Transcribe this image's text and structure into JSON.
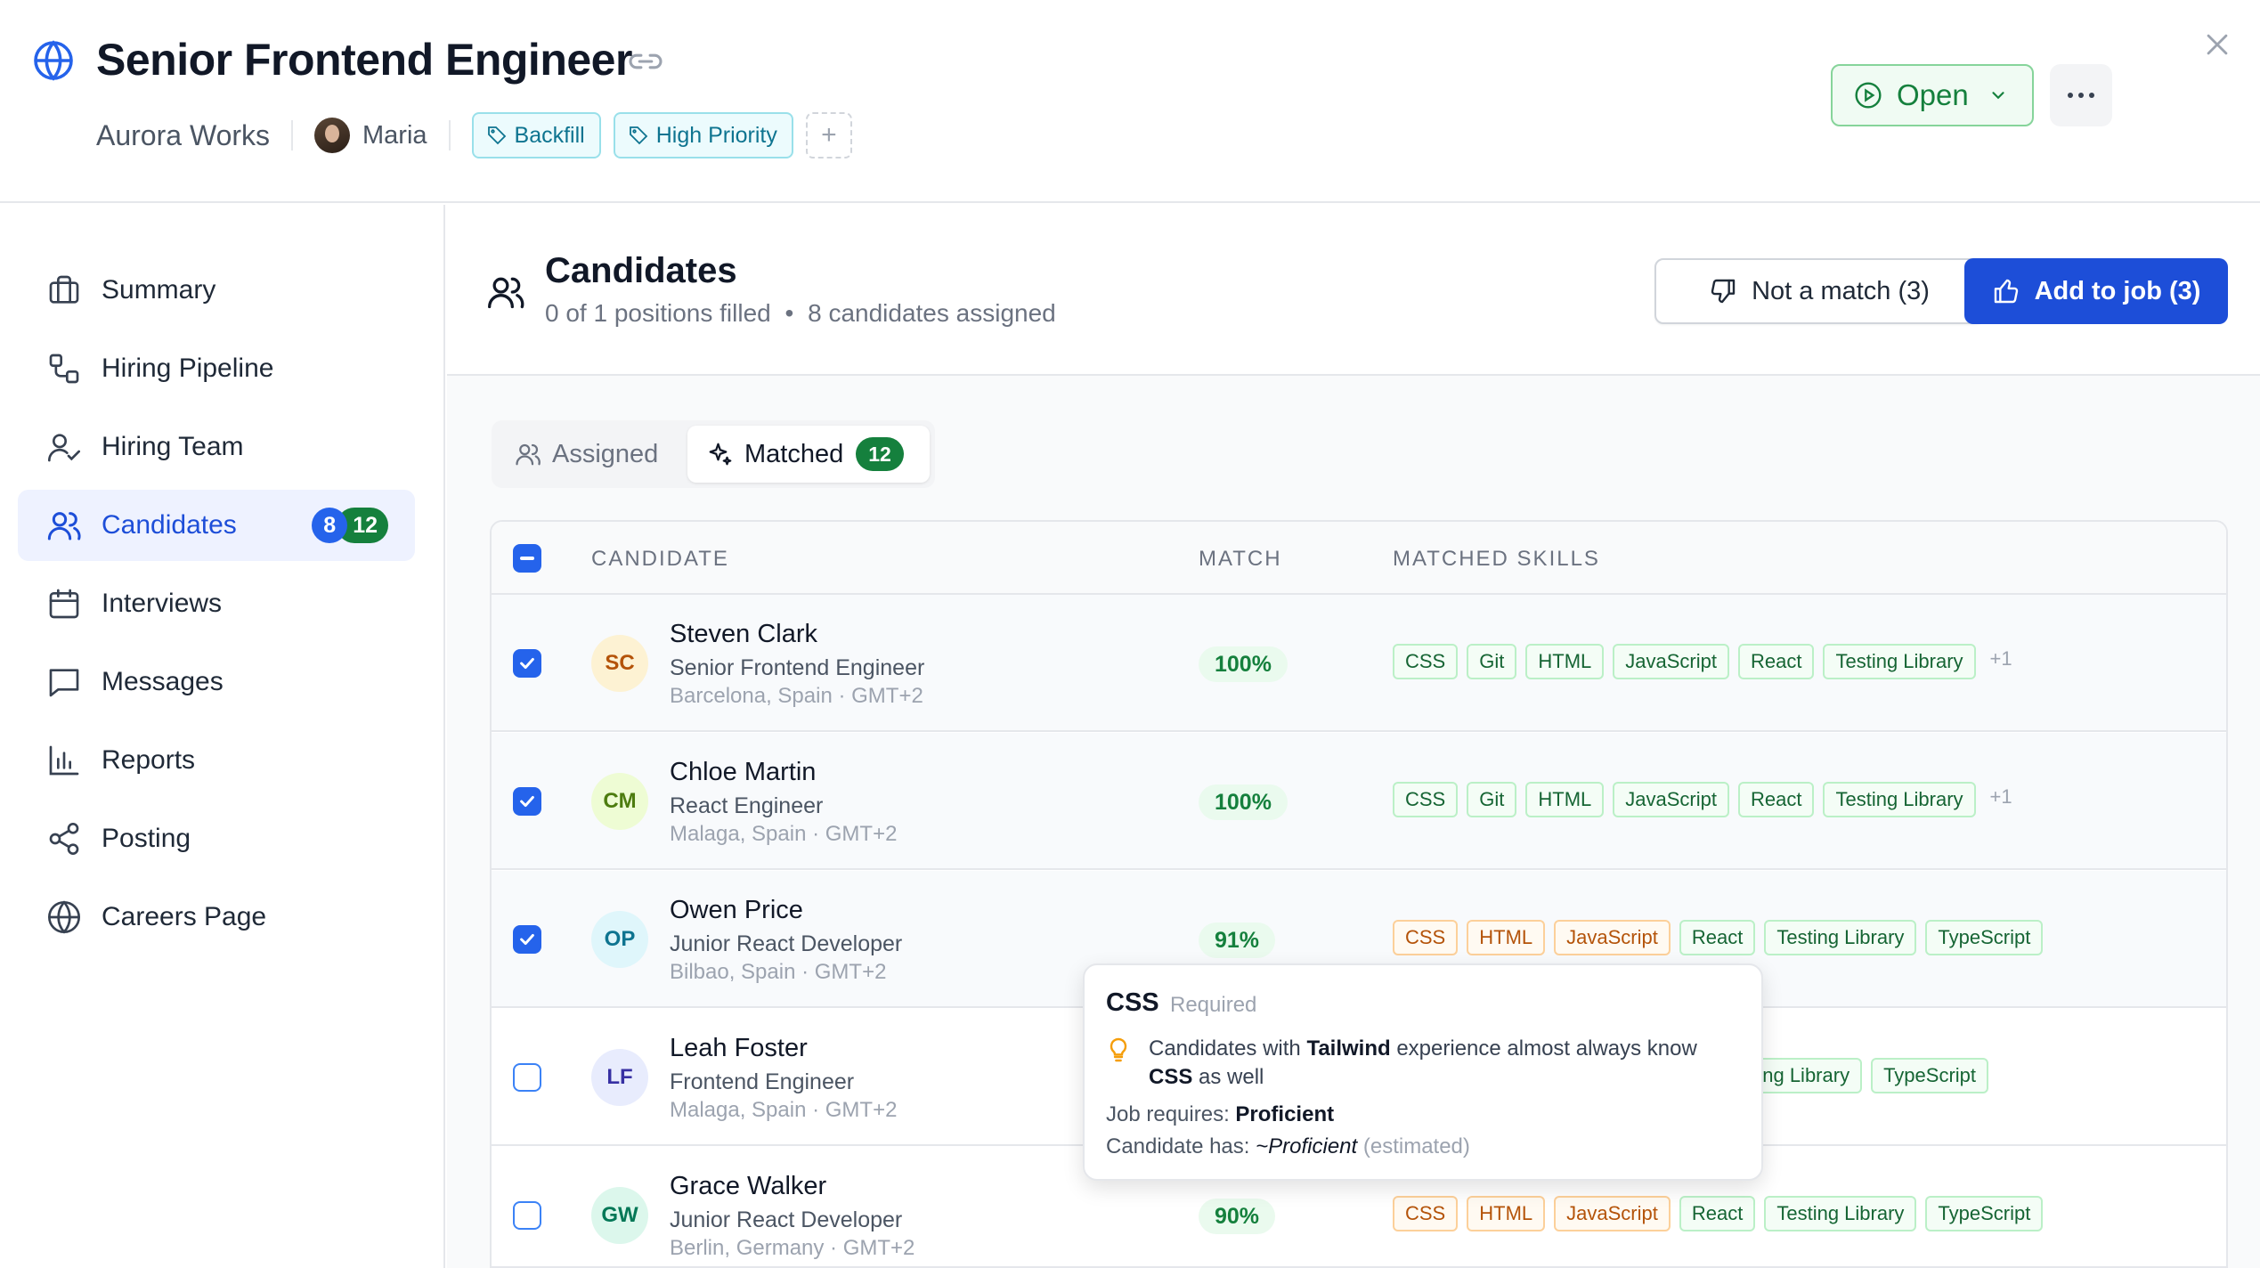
{
  "header": {
    "title": "Senior Frontend Engineer",
    "company": "Aurora Works",
    "owner": "Maria",
    "tags": [
      "Backfill",
      "High Priority"
    ],
    "tag_add": "+",
    "status_label": "Open",
    "more_label": "•••"
  },
  "sidebar": {
    "items": [
      {
        "label": "Summary",
        "icon": "briefcase-icon"
      },
      {
        "label": "Hiring Pipeline",
        "icon": "pipeline-icon"
      },
      {
        "label": "Hiring Team",
        "icon": "user-check-icon"
      },
      {
        "label": "Candidates",
        "icon": "users-icon",
        "active": true,
        "badge_assigned": "8",
        "badge_matched": "12"
      },
      {
        "label": "Interviews",
        "icon": "calendar-icon"
      },
      {
        "label": "Messages",
        "icon": "message-icon"
      },
      {
        "label": "Reports",
        "icon": "bar-chart-icon"
      },
      {
        "label": "Posting",
        "icon": "share-icon"
      },
      {
        "label": "Careers Page",
        "icon": "globe-icon"
      }
    ]
  },
  "main": {
    "title": "Candidates",
    "subtitle_filled": "0 of 1 positions filled",
    "subtitle_sep": "•",
    "subtitle_assigned": "8 candidates assigned",
    "not_match_label": "Not a match (3)",
    "add_label": "Add to job (3)",
    "tabs": {
      "assigned": "Assigned",
      "matched": "Matched",
      "matched_count": "12"
    }
  },
  "table": {
    "columns": {
      "candidate": "CANDIDATE",
      "match": "MATCH",
      "skills": "MATCHED SKILLS"
    },
    "rows": [
      {
        "checked": true,
        "initials": "SC",
        "name": "Steven Clark",
        "role": "Senior Frontend Engineer",
        "location": "Barcelona, Spain · GMT+2",
        "match": "100%",
        "avatar_bg": "#fdf2d3",
        "avatar_fg": "#b45309",
        "skills": [
          {
            "label": "CSS"
          },
          {
            "label": "Git"
          },
          {
            "label": "HTML"
          },
          {
            "label": "JavaScript"
          },
          {
            "label": "React"
          },
          {
            "label": "Testing Library"
          }
        ],
        "more": "+1"
      },
      {
        "checked": true,
        "initials": "CM",
        "name": "Chloe Martin",
        "role": "React Engineer",
        "location": "Malaga, Spain · GMT+2",
        "match": "100%",
        "avatar_bg": "#eefcd4",
        "avatar_fg": "#4d7c0f",
        "skills": [
          {
            "label": "CSS"
          },
          {
            "label": "Git"
          },
          {
            "label": "HTML"
          },
          {
            "label": "JavaScript"
          },
          {
            "label": "React"
          },
          {
            "label": "Testing Library"
          }
        ],
        "more": "+1"
      },
      {
        "checked": true,
        "initials": "OP",
        "name": "Owen Price",
        "role": "Junior React Developer",
        "location": "Bilbao, Spain · GMT+2",
        "match": "91%",
        "avatar_bg": "#dff6fb",
        "avatar_fg": "#0e7490",
        "skills": [
          {
            "label": "CSS",
            "warn": true
          },
          {
            "label": "HTML",
            "warn": true
          },
          {
            "label": "JavaScript",
            "warn": true
          },
          {
            "label": "React"
          },
          {
            "label": "Testing Library"
          },
          {
            "label": "TypeScript"
          }
        ],
        "more": ""
      },
      {
        "checked": false,
        "initials": "LF",
        "name": "Leah Foster",
        "role": "Frontend Engineer",
        "location": "Malaga, Spain · GMT+2",
        "match": "",
        "avatar_bg": "#e8ecfd",
        "avatar_fg": "#3730a3",
        "skills": [
          {
            "label": "Testing Library"
          },
          {
            "label": "TypeScript"
          }
        ],
        "more": ""
      },
      {
        "checked": false,
        "initials": "GW",
        "name": "Grace Walker",
        "role": "Junior React Developer",
        "location": "Berlin, Germany · GMT+2",
        "match": "90%",
        "avatar_bg": "#dcf7ec",
        "avatar_fg": "#047857",
        "skills": [
          {
            "label": "CSS",
            "warn": true
          },
          {
            "label": "HTML",
            "warn": true
          },
          {
            "label": "JavaScript",
            "warn": true
          },
          {
            "label": "React"
          },
          {
            "label": "Testing Library"
          },
          {
            "label": "TypeScript"
          }
        ],
        "more": ""
      }
    ]
  },
  "tooltip": {
    "skill": "CSS",
    "required": "Required",
    "tip_prefix": "Candidates with ",
    "tip_tech": "Tailwind",
    "tip_mid": " experience almost always know ",
    "tip_skill": "CSS",
    "tip_suffix": " as well",
    "job_requires_label": "Job requires: ",
    "job_requires_value": "Proficient",
    "candidate_has_label": "Candidate has: ",
    "candidate_has_value": "~Proficient",
    "estimated": "(estimated)"
  },
  "colors": {
    "accent": "#1d4ed8",
    "success": "#15803d",
    "tag": "#0e7490",
    "warning": "#b45309"
  }
}
